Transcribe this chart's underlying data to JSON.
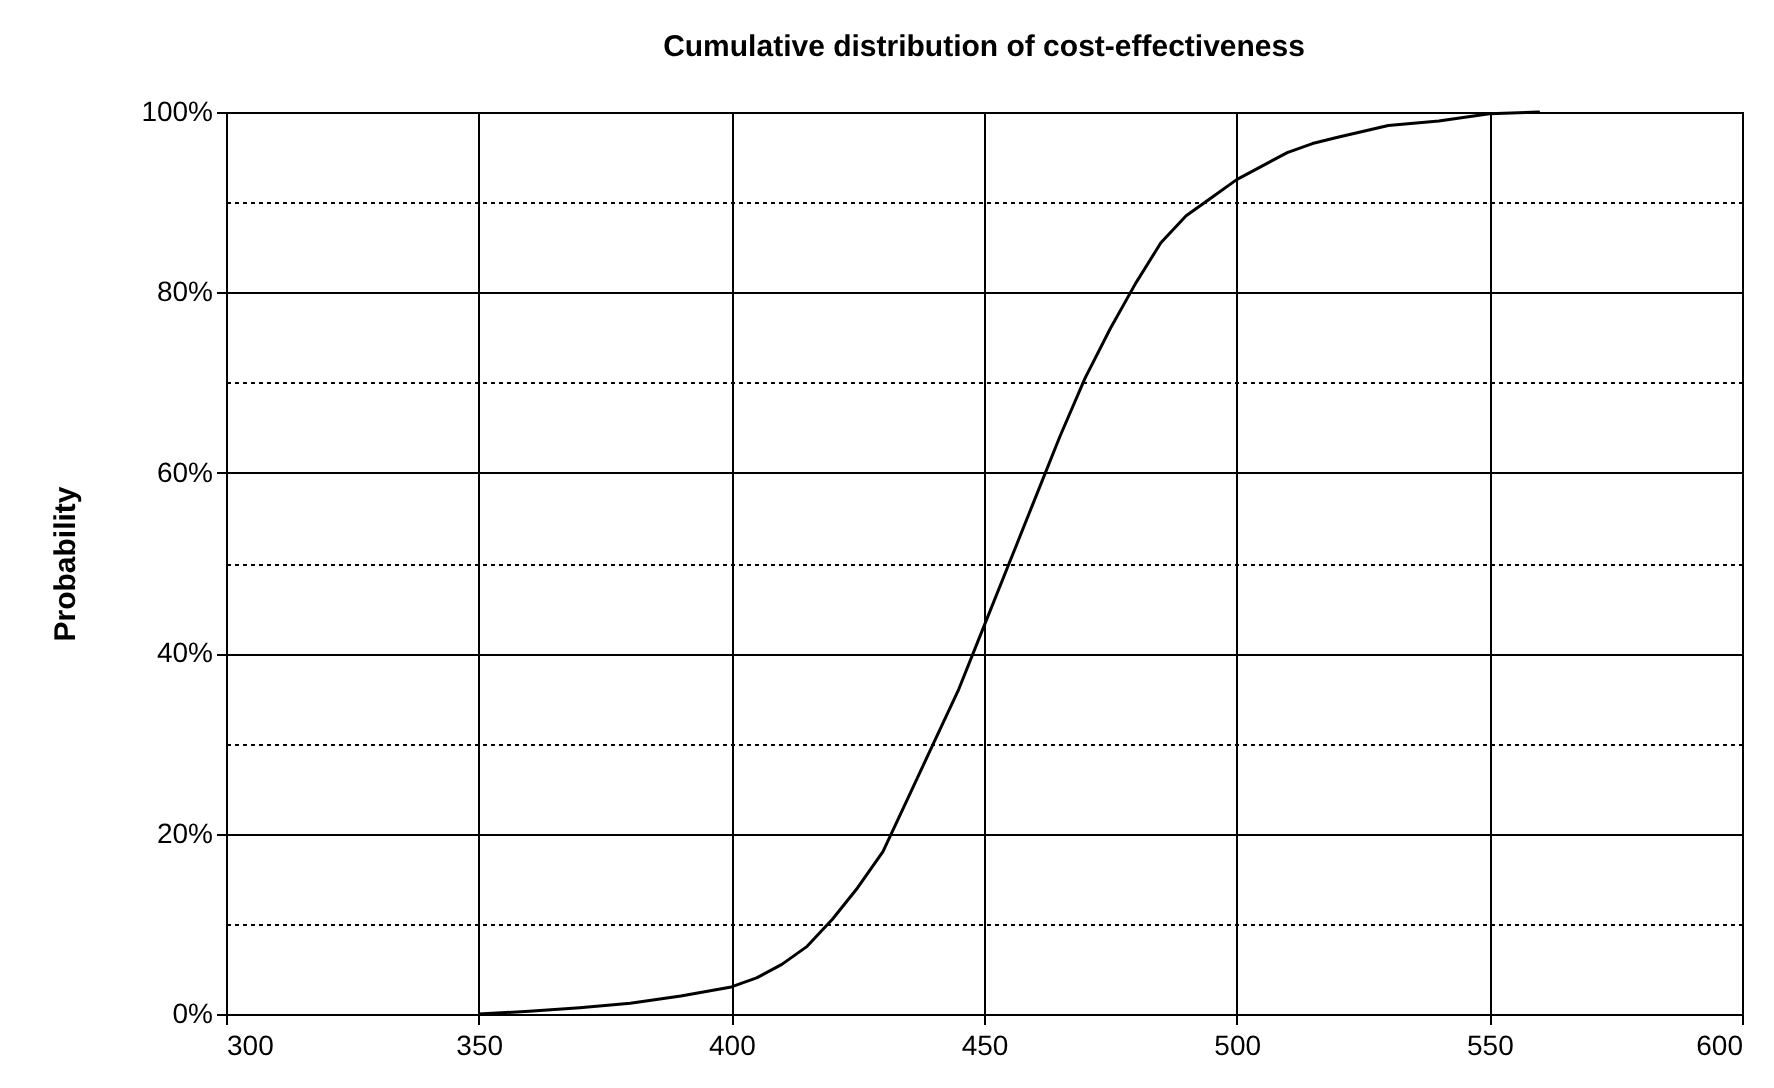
{
  "chart_data": {
    "type": "line",
    "title": "Cumulative distribution of cost-effectiveness",
    "ylabel": "Probability",
    "x": [
      350,
      360,
      370,
      380,
      390,
      395,
      400,
      405,
      410,
      415,
      420,
      425,
      430,
      435,
      440,
      445,
      450,
      455,
      460,
      465,
      470,
      475,
      480,
      485,
      490,
      495,
      500,
      505,
      510,
      515,
      520,
      530,
      540,
      550,
      560
    ],
    "series": [
      {
        "color": "#000000",
        "values": [
          0,
          0.3,
          0.7,
          1.2,
          2,
          2.5,
          3,
          4,
          5.5,
          7.5,
          10.5,
          14,
          18,
          24,
          30,
          36,
          43,
          50,
          57,
          64,
          70.5,
          76,
          81,
          85.5,
          88.5,
          90.5,
          92.5,
          94,
          95.5,
          96.5,
          97.2,
          98.5,
          99,
          99.8,
          100
        ]
      }
    ],
    "xlim": [
      300,
      600
    ],
    "xticks": [
      300,
      350,
      400,
      450,
      500,
      550,
      600
    ],
    "ylim": [
      0,
      100
    ],
    "yticks": [
      {
        "value": 0,
        "label": "0%"
      },
      {
        "value": 10,
        "label": null
      },
      {
        "value": 20,
        "label": "20%"
      },
      {
        "value": 30,
        "label": null
      },
      {
        "value": 40,
        "label": "40%"
      },
      {
        "value": 50,
        "label": null
      },
      {
        "value": 60,
        "label": "60%"
      },
      {
        "value": 70,
        "label": null
      },
      {
        "value": 80,
        "label": "80%"
      },
      {
        "value": 90,
        "label": null
      },
      {
        "value": 100,
        "label": "100%"
      }
    ],
    "grid": true,
    "marker": "none",
    "line_style": "solid",
    "legend": false
  }
}
